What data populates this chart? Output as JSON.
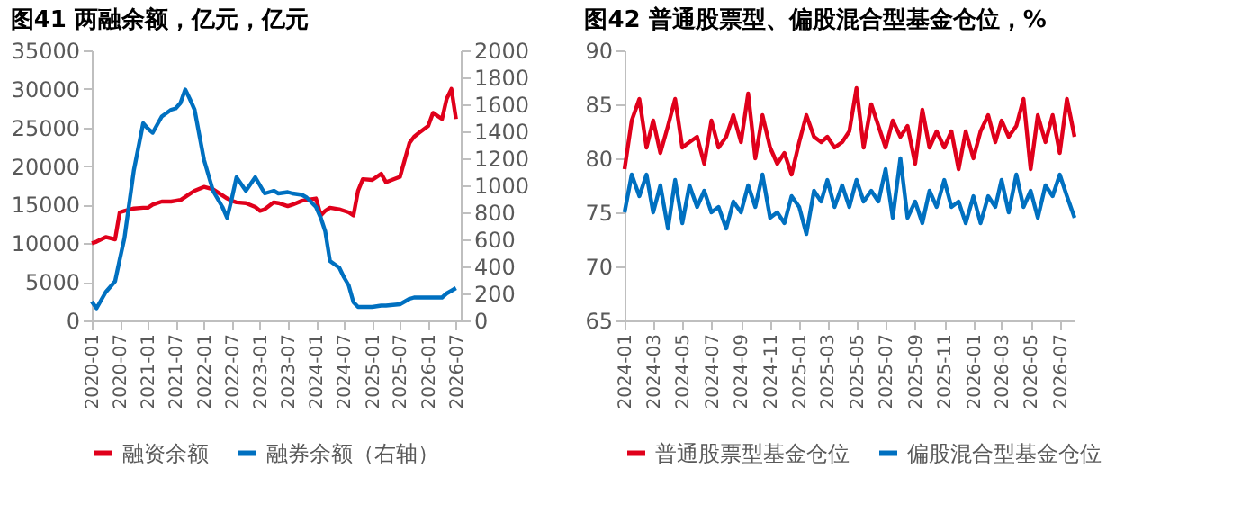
{
  "chart_data": [
    {
      "type": "line",
      "title": "图41  两融余额，亿元，亿元",
      "x": [
        "2020-01",
        "2020-02",
        "2020-04",
        "2020-06",
        "2020-07",
        "2020-08",
        "2020-10",
        "2020-12",
        "2021-01",
        "2021-02",
        "2021-04",
        "2021-06",
        "2021-07",
        "2021-08",
        "2021-09",
        "2021-10",
        "2021-11",
        "2022-01",
        "2022-03",
        "2022-05",
        "2022-06",
        "2022-07",
        "2022-08",
        "2022-10",
        "2022-12",
        "2023-01",
        "2023-02",
        "2023-04",
        "2023-05",
        "2023-07",
        "2023-08",
        "2023-10",
        "2023-11",
        "2024-01",
        "2024-02",
        "2024-03",
        "2024-04",
        "2024-06",
        "2024-07",
        "2024-08",
        "2024-09",
        "2024-10",
        "2024-11",
        "2025-01",
        "2025-03",
        "2025-04",
        "2025-07",
        "2025-09",
        "2025-10",
        "2025-11",
        "2026-01",
        "2026-02",
        "2026-04",
        "2026-05",
        "2026-06",
        "2026-07"
      ],
      "series": [
        {
          "name": "融资余额",
          "color": "#e0001b",
          "axis": "y",
          "values": [
            10000,
            10200,
            10800,
            10500,
            14000,
            14200,
            14500,
            14600,
            14600,
            15000,
            15400,
            15400,
            15500,
            15600,
            16000,
            16400,
            16800,
            17300,
            17000,
            16200,
            15800,
            15500,
            15300,
            15200,
            14700,
            14200,
            14400,
            15300,
            15200,
            14800,
            15000,
            15500,
            15600,
            15800,
            13600,
            14200,
            14600,
            14400,
            14200,
            14000,
            13600,
            16800,
            18300,
            18200,
            19000,
            17900,
            18600,
            23000,
            23800,
            24300,
            25200,
            26900,
            26100,
            28700,
            30000,
            26100
          ]
        },
        {
          "name": "融券余额（右轴）",
          "color": "#0070c0",
          "axis": "y2",
          "values": [
            140,
            90,
            210,
            290,
            450,
            610,
            1110,
            1460,
            1420,
            1390,
            1510,
            1560,
            1570,
            1610,
            1710,
            1640,
            1560,
            1190,
            960,
            840,
            760,
            900,
            1060,
            960,
            1060,
            1000,
            940,
            960,
            940,
            950,
            940,
            930,
            910,
            840,
            760,
            660,
            440,
            390,
            320,
            260,
            135,
            100,
            100,
            100,
            110,
            110,
            120,
            160,
            170,
            170,
            170,
            170,
            170,
            200,
            220,
            240
          ]
        }
      ],
      "xlim": [
        "2020-01",
        "2026-08"
      ],
      "xticks": [
        "2020-01",
        "2020-07",
        "2021-01",
        "2021-07",
        "2022-01",
        "2022-07",
        "2023-01",
        "2023-07",
        "2024-01",
        "2024-07",
        "2025-01",
        "2025-07",
        "2026-01",
        "2026-07"
      ],
      "ylim": [
        0,
        35000
      ],
      "yticks": [
        0,
        5000,
        10000,
        15000,
        20000,
        25000,
        30000,
        35000
      ],
      "y2lim": [
        0,
        2000
      ],
      "y2ticks": [
        0,
        200,
        400,
        600,
        800,
        1000,
        1200,
        1400,
        1600,
        1800,
        2000
      ],
      "grid": false,
      "legend": "bottom",
      "marker": "none",
      "line_style": "solid"
    },
    {
      "type": "line",
      "title": "图42  普通股票型、偏股混合型基金仓位，%",
      "x": [
        "2024-01-01",
        "2024-01-16",
        "2024-02-01",
        "2024-02-16",
        "2024-03-01",
        "2024-03-16",
        "2024-04-01",
        "2024-04-16",
        "2024-05-01",
        "2024-05-16",
        "2024-06-01",
        "2024-06-16",
        "2024-07-01",
        "2024-07-16",
        "2024-08-01",
        "2024-08-16",
        "2024-09-01",
        "2024-09-16",
        "2024-10-01",
        "2024-10-16",
        "2024-11-01",
        "2024-11-16",
        "2024-12-01",
        "2024-12-16",
        "2025-01-01",
        "2025-01-16",
        "2025-02-01",
        "2025-02-16",
        "2025-03-01",
        "2025-03-16",
        "2025-04-01",
        "2025-04-16",
        "2025-05-01",
        "2025-05-16",
        "2025-06-01",
        "2025-06-16",
        "2025-07-01",
        "2025-07-16",
        "2025-08-01",
        "2025-08-16",
        "2025-09-01",
        "2025-09-16",
        "2025-10-01",
        "2025-10-16",
        "2025-11-01",
        "2025-11-16",
        "2025-12-01",
        "2025-12-16",
        "2026-01-01",
        "2026-01-16",
        "2026-02-01",
        "2026-02-16",
        "2026-03-01",
        "2026-03-16",
        "2026-04-01",
        "2026-04-16",
        "2026-05-01",
        "2026-05-16",
        "2026-06-01",
        "2026-06-16",
        "2026-07-01",
        "2026-07-16",
        "2026-08-01"
      ],
      "series": [
        {
          "name": "普通股票型基金仓位",
          "color": "#e0001b",
          "values": [
            79.0,
            83.5,
            85.5,
            81.0,
            83.5,
            80.5,
            83.0,
            85.5,
            81.0,
            81.5,
            82.0,
            79.5,
            83.5,
            81.0,
            82.0,
            84.0,
            81.5,
            86.0,
            80.0,
            84.0,
            81.0,
            79.5,
            80.5,
            78.5,
            81.5,
            84.0,
            82.0,
            81.5,
            82.0,
            81.0,
            81.5,
            82.5,
            86.5,
            81.0,
            85.0,
            83.0,
            81.0,
            83.5,
            82.0,
            83.0,
            79.5,
            84.5,
            81.0,
            82.5,
            81.0,
            82.5,
            79.0,
            82.5,
            80.0,
            82.5,
            84.0,
            81.5,
            83.5,
            82.0,
            83.0,
            85.5,
            79.0,
            84.0,
            81.5,
            84.0,
            80.5,
            85.5,
            82.0
          ]
        },
        {
          "name": "偏股混合型基金仓位",
          "color": "#0070c0",
          "values": [
            75.0,
            78.5,
            76.5,
            78.5,
            75.0,
            77.5,
            73.5,
            78.0,
            74.0,
            77.5,
            75.5,
            77.0,
            75.0,
            75.5,
            73.5,
            76.0,
            75.0,
            77.5,
            75.5,
            78.5,
            74.5,
            75.0,
            74.0,
            76.5,
            75.5,
            73.0,
            77.0,
            76.0,
            78.0,
            75.5,
            77.5,
            75.5,
            78.0,
            76.0,
            77.0,
            76.0,
            79.0,
            74.5,
            80.0,
            74.5,
            76.0,
            74.0,
            77.0,
            75.5,
            78.0,
            75.5,
            76.0,
            74.0,
            76.5,
            74.0,
            76.5,
            75.5,
            78.0,
            75.0,
            78.5,
            75.5,
            77.0,
            74.5,
            77.5,
            76.5,
            78.5,
            76.5,
            74.5
          ]
        }
      ],
      "xlim": [
        "2024-01-01",
        "2026-08-01"
      ],
      "xticks": [
        "2024-01",
        "2024-03",
        "2024-05",
        "2024-07",
        "2024-09",
        "2024-11",
        "2025-01",
        "2025-03",
        "2025-05",
        "2025-07",
        "2025-09",
        "2025-11",
        "2026-01",
        "2026-03",
        "2026-05",
        "2026-07"
      ],
      "ylim": [
        65,
        90
      ],
      "yticks": [
        65,
        70,
        75,
        80,
        85,
        90
      ],
      "grid": false,
      "legend": "bottom",
      "marker": "none",
      "line_style": "solid"
    }
  ]
}
